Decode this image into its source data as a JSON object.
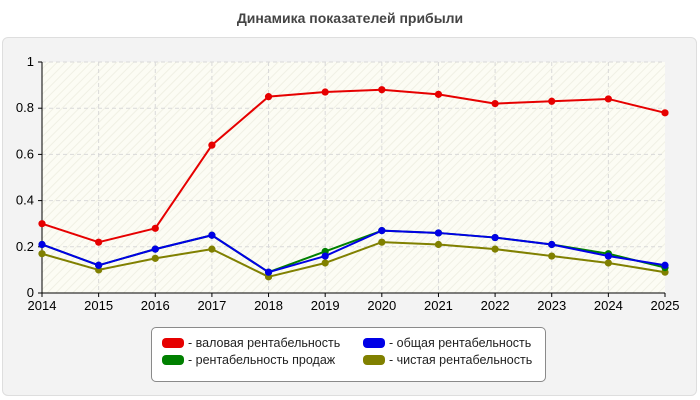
{
  "chart_data": {
    "type": "line",
    "title": "Динамика показателей прибыли",
    "xlabel": "",
    "ylabel": "",
    "ylim": [
      0,
      1
    ],
    "yticks": [
      "0",
      "0.2",
      "0.4",
      "0.6",
      "0.8",
      "1"
    ],
    "x": [
      "2014",
      "2015",
      "2016",
      "2017",
      "2018",
      "2019",
      "2020",
      "2021",
      "2022",
      "2023",
      "2024",
      "2025"
    ],
    "grid": true,
    "legend_position": "bottom",
    "series": [
      {
        "name": "- валовая рентабельность",
        "color": "#e60000",
        "values": [
          0.3,
          0.22,
          0.28,
          0.64,
          0.85,
          0.87,
          0.88,
          0.86,
          0.82,
          0.83,
          0.84,
          0.78
        ]
      },
      {
        "name": "- рентабельность продаж",
        "color": "#008000",
        "values": [
          0.21,
          0.12,
          0.19,
          0.25,
          0.09,
          0.18,
          0.27,
          0.26,
          0.24,
          0.21,
          0.17,
          0.11
        ]
      },
      {
        "name": "- общая рентабельность",
        "color": "#0000e6",
        "values": [
          0.21,
          0.12,
          0.19,
          0.25,
          0.09,
          0.16,
          0.27,
          0.26,
          0.24,
          0.21,
          0.16,
          0.12
        ]
      },
      {
        "name": "- чистая рентабельность",
        "color": "#808000",
        "values": [
          0.17,
          0.1,
          0.15,
          0.19,
          0.07,
          0.13,
          0.22,
          0.21,
          0.19,
          0.16,
          0.13,
          0.09
        ]
      }
    ]
  }
}
